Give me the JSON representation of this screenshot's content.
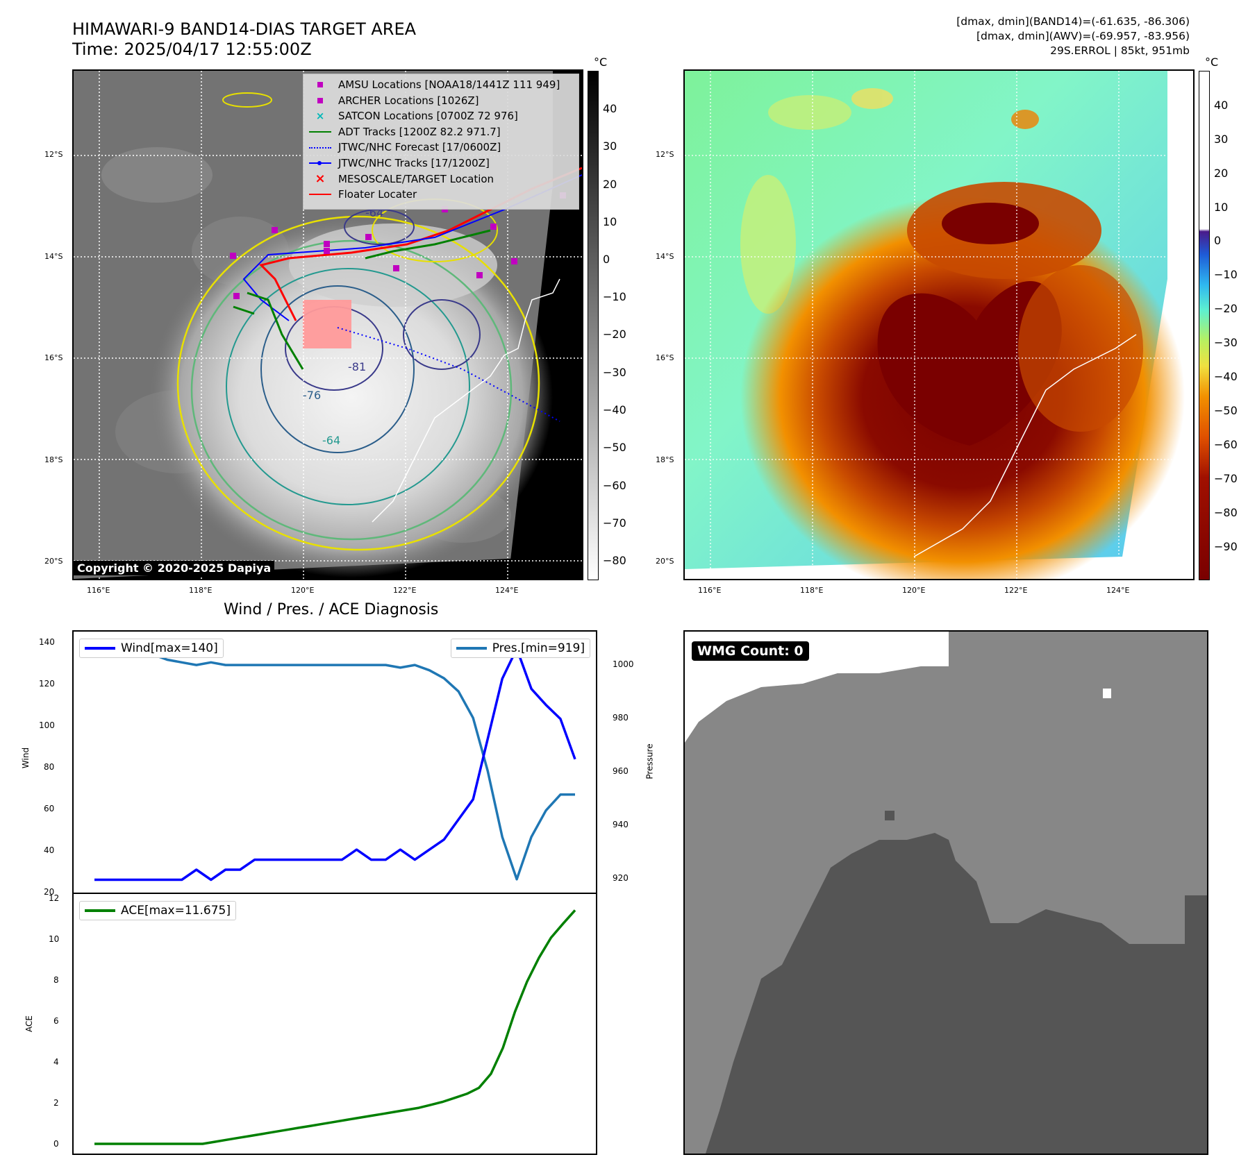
{
  "header": {
    "title_line1": "HIMAWARI-9 BAND14-DIAS TARGET AREA",
    "title_line2": "Time: 2025/04/17 12:55:00Z",
    "info_line1": "[dmax, dmin](BAND14)=(-61.635, -86.306)",
    "info_line2": "[dmax, dmin](AWV)=(-69.957, -83.956)",
    "info_line3": "29S.ERROL | 85kt, 951mb"
  },
  "map_left": {
    "unit": "°C",
    "colorbar_ticks": [
      "40",
      "30",
      "20",
      "10",
      "0",
      "−10",
      "−20",
      "−30",
      "−40",
      "−50",
      "−60",
      "−70",
      "−80"
    ],
    "lat_labels": [
      "12°S",
      "14°S",
      "16°S",
      "18°S",
      "20°S"
    ],
    "lon_labels": [
      "116°E",
      "118°E",
      "120°E",
      "122°E",
      "124°E"
    ],
    "contour_labels": [
      "-64",
      "-76",
      "-64",
      "-81"
    ],
    "copyright": "Copyright © 2020-2025 Dapiya",
    "legend": [
      {
        "label": "AMSU Locations [NOAA18/1441Z 111 949]",
        "symbol": "square",
        "color": "#c000c0"
      },
      {
        "label": "ARCHER Locations [1026Z]",
        "symbol": "square",
        "color": "#c000c0"
      },
      {
        "label": "SATCON Locations [0700Z 72 976]",
        "symbol": "x",
        "color": "#00b8b8"
      },
      {
        "label": "ADT Tracks [1200Z 82.2 971.7]",
        "symbol": "line",
        "color": "#008000"
      },
      {
        "label": "JTWC/NHC Forecast [17/0600Z]",
        "symbol": "dotted",
        "color": "#0000ff"
      },
      {
        "label": "JTWC/NHC Tracks [17/1200Z]",
        "symbol": "line-dot",
        "color": "#0000ff"
      },
      {
        "label": "MESOSCALE/TARGET Location",
        "symbol": "x",
        "color": "#ff0000"
      },
      {
        "label": "Floater Locater",
        "symbol": "line",
        "color": "#ff0000"
      }
    ]
  },
  "map_right": {
    "unit": "°C",
    "colorbar_ticks": [
      "40",
      "30",
      "20",
      "10",
      "0",
      "−10",
      "−20",
      "−30",
      "−40",
      "−50",
      "−60",
      "−70",
      "−80",
      "−90"
    ],
    "lat_labels": [
      "12°S",
      "14°S",
      "16°S",
      "18°S",
      "20°S"
    ],
    "lon_labels": [
      "116°E",
      "118°E",
      "120°E",
      "122°E",
      "124°E"
    ]
  },
  "diagnosis": {
    "title": "Wind / Pres. / ACE Diagnosis",
    "wind_axis_label": "Wind",
    "pressure_axis_label": "Pressure",
    "ace_axis_label": "ACE",
    "wind_legend": "Wind[max=140]",
    "pres_legend": "Pres.[min=919]",
    "ace_legend": "ACE[max=11.675]",
    "wind_ticks": [
      "140",
      "120",
      "100",
      "80",
      "60",
      "40",
      "20"
    ],
    "pres_ticks": [
      "1000",
      "980",
      "960",
      "940",
      "920"
    ],
    "ace_ticks": [
      "12",
      "10",
      "8",
      "6",
      "4",
      "2",
      "0"
    ]
  },
  "wmg": {
    "label": "WMG Count: 0"
  },
  "colors": {
    "wind": "#0000ff",
    "pressure": "#1f77b4",
    "ace": "#008000"
  },
  "chart_data": [
    {
      "type": "line",
      "title": "Wind / Pres. / ACE Diagnosis",
      "ylabel": "Wind",
      "ylim": [
        20,
        145
      ],
      "series": [
        {
          "name": "Wind[max=140]",
          "axis": "left",
          "values": [
            25,
            25,
            25,
            25,
            25,
            25,
            25,
            30,
            25,
            30,
            30,
            35,
            35,
            35,
            35,
            35,
            35,
            35,
            40,
            35,
            35,
            40,
            35,
            40,
            45,
            55,
            65,
            95,
            125,
            140,
            120,
            112,
            105,
            85
          ]
        },
        {
          "name": "Pres.[min=919]",
          "axis": "right",
          "ylim": [
            915,
            1010
          ],
          "values": [
            1009,
            1007,
            1007,
            1006,
            1004,
            1002,
            1001,
            1000,
            1001,
            1000,
            1000,
            1000,
            1000,
            1000,
            1000,
            1000,
            1000,
            1000,
            1000,
            1000,
            1000,
            999,
            1000,
            998,
            995,
            990,
            980,
            960,
            935,
            919,
            935,
            945,
            951,
            951
          ]
        }
      ]
    },
    {
      "type": "line",
      "ylabel": "ACE",
      "ylim": [
        0,
        12
      ],
      "series": [
        {
          "name": "ACE[max=11.675]",
          "values": [
            0,
            0,
            0,
            0,
            0,
            0,
            0,
            0,
            0,
            0,
            0.1,
            0.2,
            0.3,
            0.4,
            0.5,
            0.6,
            0.7,
            0.8,
            0.9,
            1.0,
            1.1,
            1.2,
            1.3,
            1.4,
            1.5,
            1.6,
            1.7,
            1.8,
            1.95,
            2.1,
            2.3,
            2.5,
            2.8,
            3.5,
            4.8,
            6.6,
            8.1,
            9.3,
            10.3,
            11.0,
            11.675
          ]
        }
      ]
    }
  ]
}
